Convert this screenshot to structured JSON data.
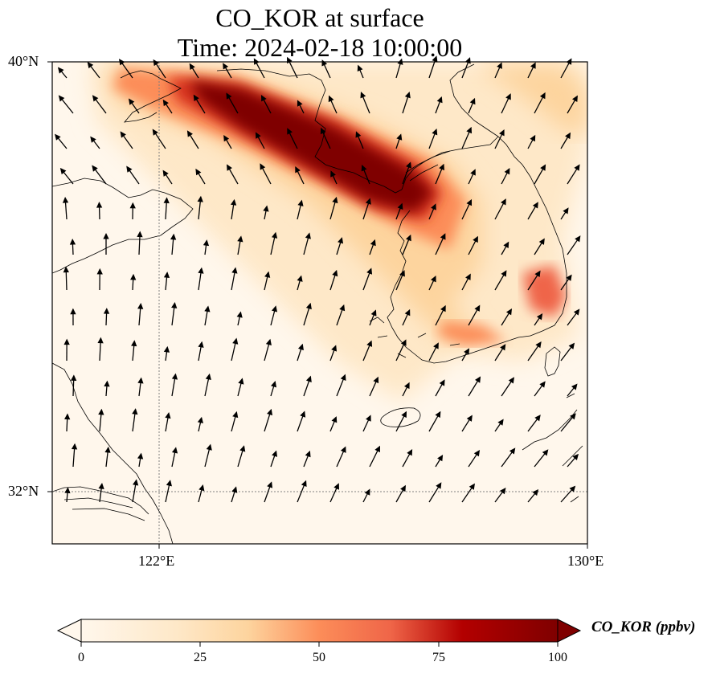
{
  "title": {
    "line1": "CO_KOR at surface",
    "line2": "Time: 2024-02-18 10:00:00"
  },
  "axes": {
    "lat_labels": [
      "40°N",
      "32°N"
    ],
    "lon_labels": [
      "122°E",
      "130°E"
    ],
    "lon_range": [
      120,
      130
    ],
    "lat_range": [
      31,
      40
    ],
    "gridlines_lon": [
      122
    ],
    "gridlines_lat": [
      32
    ]
  },
  "colorbar": {
    "label": "CO_KOR (ppbv)",
    "ticks": [
      "0",
      "25",
      "50",
      "75",
      "100"
    ],
    "range": [
      0,
      100
    ],
    "colormap": "OrRd",
    "extend": "both"
  },
  "colors": {
    "low": "#fff7ec",
    "mid": "#fc8d59",
    "high": "#7f0000"
  }
}
